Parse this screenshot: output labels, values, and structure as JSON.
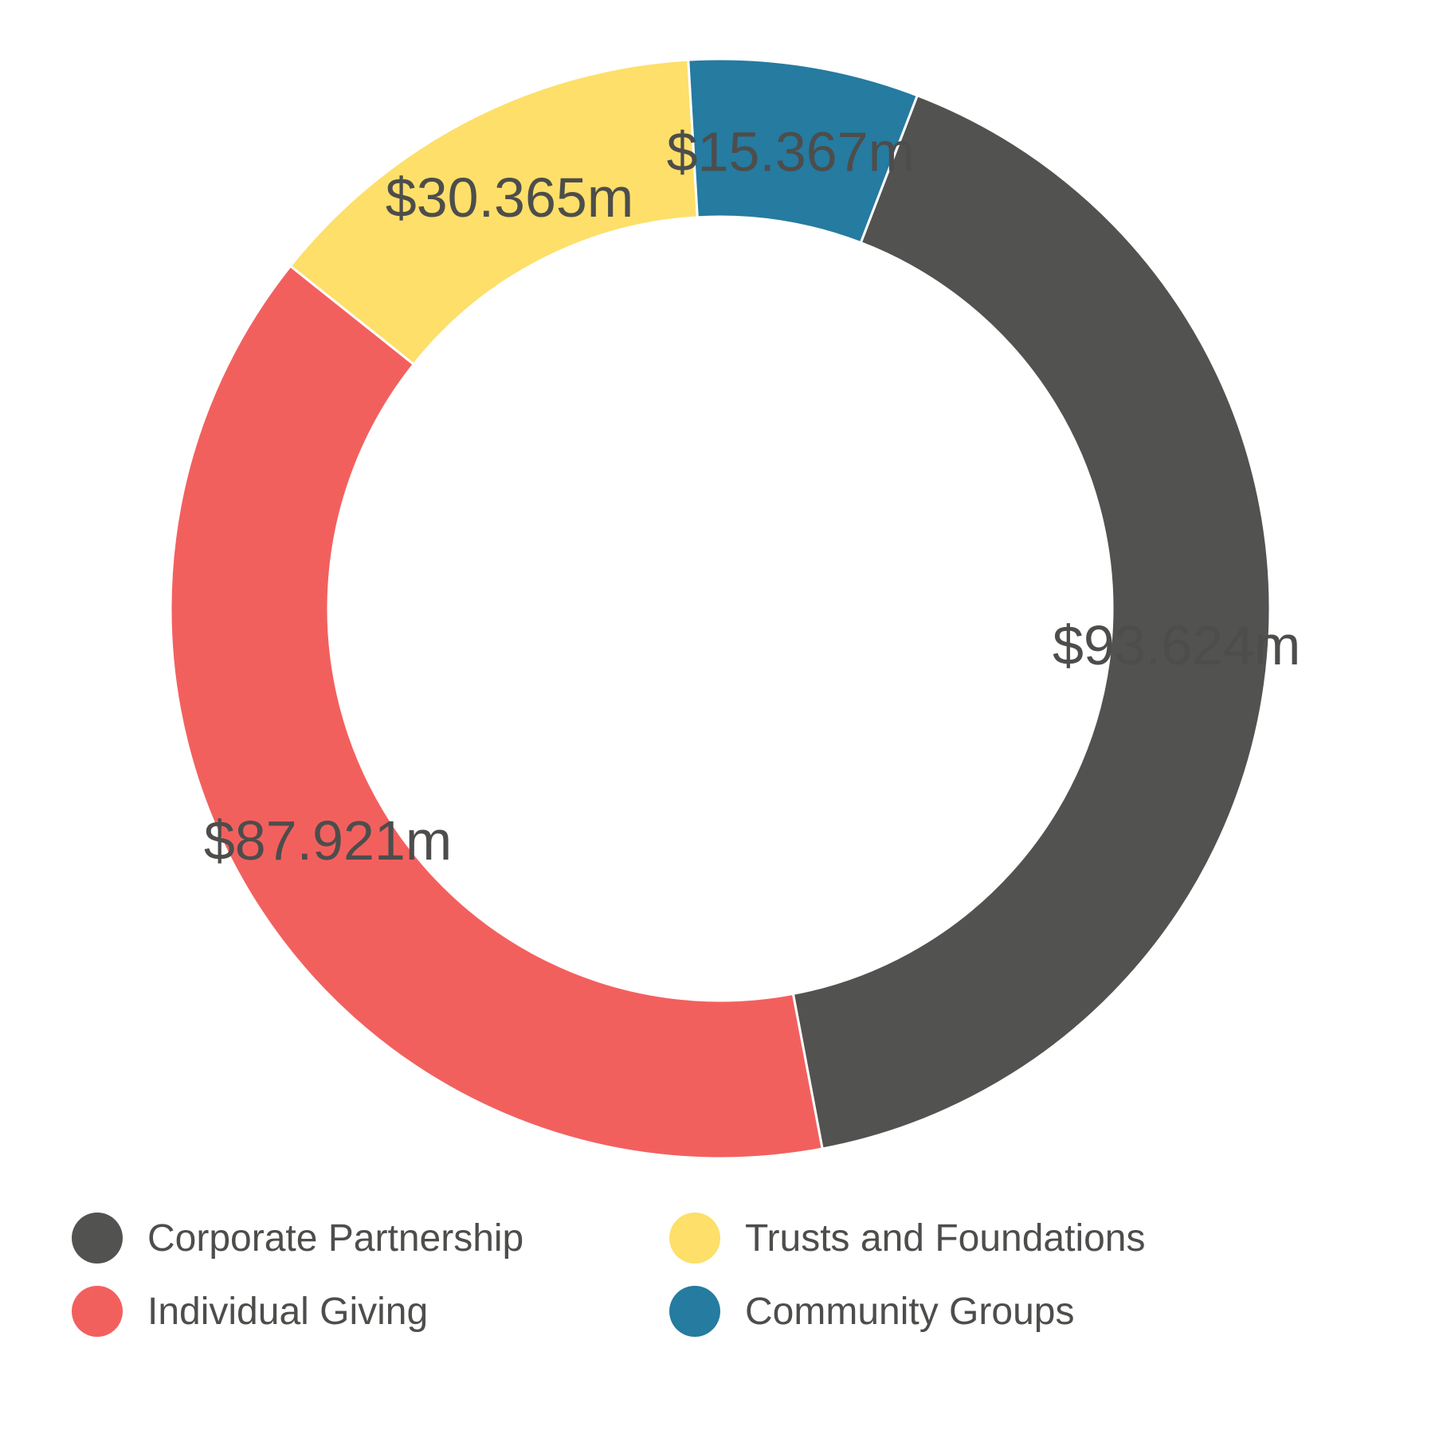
{
  "chart_data": {
    "type": "pie",
    "variant": "donut",
    "title": "",
    "slices": [
      {
        "name": "Corporate Partnership",
        "value": 93.624,
        "label": "$93.624m",
        "color": "#525250"
      },
      {
        "name": "Individual Giving",
        "value": 87.921,
        "label": "$87.921m",
        "color": "#f2605e"
      },
      {
        "name": "Trusts and Foundations",
        "value": 30.365,
        "label": "$30.365m",
        "color": "#fddf6a"
      },
      {
        "name": "Community Groups",
        "value": 15.367,
        "label": "$15.367m",
        "color": "#257ba0"
      }
    ],
    "legend_position": "bottom",
    "unit": "$m"
  },
  "legend": {
    "items": [
      {
        "label": "Corporate Partnership",
        "color": "#525250"
      },
      {
        "label": "Trusts and Foundations",
        "color": "#fddf6a"
      },
      {
        "label": "Individual Giving",
        "color": "#f2605e"
      },
      {
        "label": "Community Groups",
        "color": "#257ba0"
      }
    ]
  }
}
